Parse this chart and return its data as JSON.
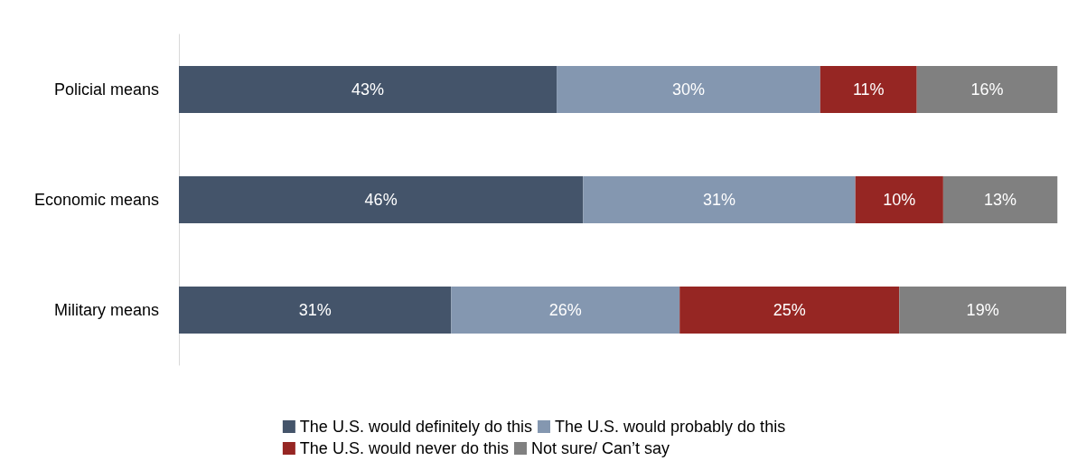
{
  "chart_data": {
    "type": "bar",
    "orientation": "horizontal",
    "stacked": true,
    "categories": [
      "Policial means",
      "Economic means",
      "Military means"
    ],
    "series": [
      {
        "name": "The U.S. would definitely do this",
        "color": "#44546a",
        "values": [
          43,
          46,
          31
        ],
        "value_labels": [
          "43%",
          "46%",
          "31%"
        ]
      },
      {
        "name": "The U.S. would probably do this",
        "color": "#8497b0",
        "values": [
          30,
          31,
          26
        ],
        "value_labels": [
          "30%",
          "31%",
          "26%"
        ]
      },
      {
        "name": "The U.S. would never do this",
        "color": "#962623",
        "values": [
          11,
          10,
          25
        ],
        "value_labels": [
          "11%",
          "10%",
          "25%"
        ]
      },
      {
        "name": "Not sure/ Can’t say",
        "color": "#808080",
        "values": [
          16,
          13,
          19
        ],
        "value_labels": [
          "16%",
          "13%",
          "19%"
        ]
      }
    ],
    "legend": "bottom",
    "grid": false
  }
}
